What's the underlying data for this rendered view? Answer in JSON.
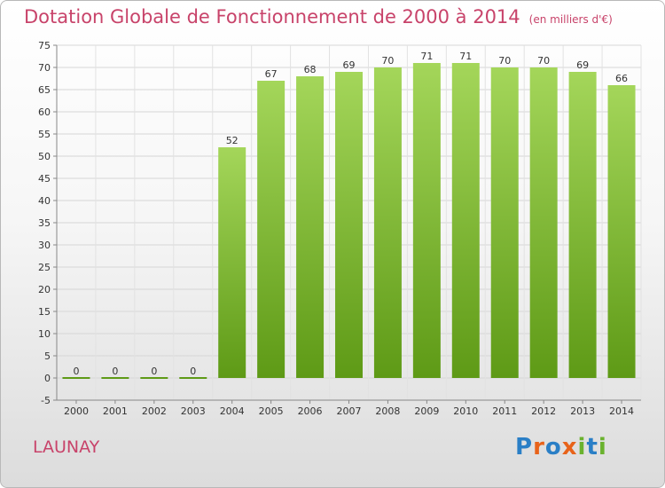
{
  "title": "Dotation Globale de Fonctionnement de 2000 à 2014",
  "subtitle": "(en milliers d'€)",
  "place": "LAUNAY",
  "logo": {
    "text": "Proxiti",
    "letter_colors": [
      "#2a7fc6",
      "#e8631a",
      "#2a7fc6",
      "#e8631a",
      "#6ab22e",
      "#2a7fc6",
      "#6ab22e"
    ]
  },
  "colors": {
    "title": "#c8436a",
    "bar_top": "#a4d65a",
    "bar_bottom": "#5e9a16"
  },
  "chart_data": {
    "type": "bar",
    "categories": [
      "2000",
      "2001",
      "2002",
      "2003",
      "2004",
      "2005",
      "2006",
      "2007",
      "2008",
      "2009",
      "2010",
      "2011",
      "2012",
      "2013",
      "2014"
    ],
    "values": [
      0,
      0,
      0,
      0,
      52,
      67,
      68,
      69,
      70,
      71,
      71,
      70,
      70,
      69,
      66
    ],
    "data_labels": [
      "0",
      "0",
      "0",
      "0",
      "52",
      "67",
      "68",
      "69",
      "70",
      "71",
      "71",
      "70",
      "70",
      "69",
      "66"
    ],
    "ylim": [
      -5,
      75
    ],
    "yticks": [
      -5,
      0,
      5,
      10,
      15,
      20,
      25,
      30,
      35,
      40,
      45,
      50,
      55,
      60,
      65,
      70,
      75
    ],
    "grid": true,
    "legend": "none"
  }
}
